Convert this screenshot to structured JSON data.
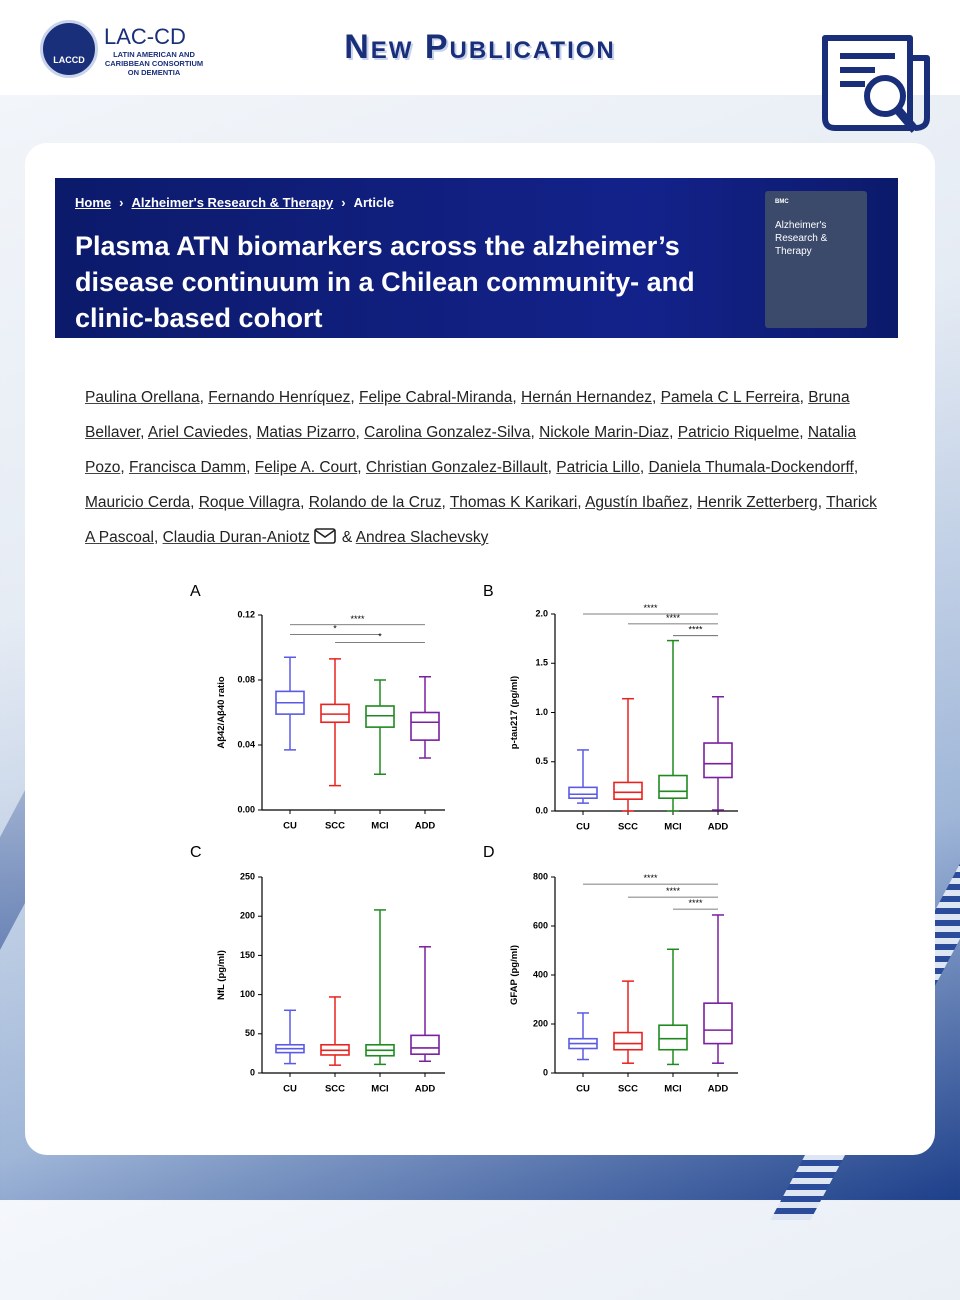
{
  "header": {
    "logo_text": "LACCD",
    "org_name": "LAC-CD",
    "org_full": "LATIN AMERICAN AND CARIBBEAN CONSORTIUM ON DEMENTIA",
    "title": "New Publication"
  },
  "article": {
    "breadcrumb": [
      "Home",
      "Alzheimer's Research & Therapy",
      "Article"
    ],
    "title": "Plasma ATN biomarkers across the alzheimer’s disease continuum in a Chilean community- and clinic-based cohort",
    "cover": {
      "brand": "BMC",
      "journal": "Alzheimer's Research & Therapy"
    }
  },
  "authors": {
    "names": [
      "Paulina Orellana",
      "Fernando Henríquez",
      "Felipe Cabral-Miranda",
      "Hernán Hernandez",
      "Pamela C L Ferreira",
      "Bruna Bellaver",
      "Ariel Caviedes",
      "Matias Pizarro",
      "Carolina Gonzalez-Silva",
      "Nickole Marin-Diaz",
      "Patricio Riquelme",
      "Natalia Pozo",
      "Francisca Damm",
      "Felipe A. Court",
      "Christian Gonzalez-Billault",
      "Patricia Lillo",
      "Daniela Thumala-Dockendorff",
      "Mauricio Cerda",
      "Roque Villagra",
      "Rolando de la Cruz",
      "Thomas K Karikari",
      "Agustín Ibañez",
      "Henrik Zetterberg",
      "Tharick A Pascoal",
      "Claudia Duran-Aniotz",
      "Andrea Slachevsky"
    ],
    "separator": ", ",
    "conjunction": "&"
  },
  "chart_data": [
    {
      "type": "box",
      "panel": "A",
      "y_label": "Aβ42/Aβ40 ratio",
      "categories": [
        "CU",
        "SCC",
        "MCI",
        "ADD"
      ],
      "colors": [
        "#5a5ae6",
        "#e8231f",
        "#1f8a1f",
        "#7a1fa0"
      ],
      "boxes": [
        {
          "min": 0.037,
          "q1": 0.059,
          "median": 0.066,
          "q3": 0.073,
          "max": 0.094
        },
        {
          "min": 0.015,
          "q1": 0.054,
          "median": 0.059,
          "q3": 0.065,
          "max": 0.093
        },
        {
          "min": 0.022,
          "q1": 0.051,
          "median": 0.058,
          "q3": 0.064,
          "max": 0.08
        },
        {
          "min": 0.032,
          "q1": 0.043,
          "median": 0.054,
          "q3": 0.06,
          "max": 0.082
        }
      ],
      "ylim": [
        0,
        0.12
      ],
      "yticks": [
        {
          "value": 0,
          "label": "0.00"
        },
        {
          "value": 0.04,
          "label": "0.04"
        },
        {
          "value": 0.08,
          "label": "0.08"
        },
        {
          "value": 0.12,
          "label": "0.12"
        }
      ],
      "brackets": [
        {
          "from": "CU",
          "to": "ADD",
          "y": 0.114,
          "label": "****"
        },
        {
          "from": "CU",
          "to": "MCI",
          "y": 0.108,
          "label": "*"
        },
        {
          "from": "SCC",
          "to": "ADD",
          "y": 0.103,
          "label": "*"
        }
      ]
    },
    {
      "type": "box",
      "panel": "B",
      "y_label": "p-tau217 (pg/ml)",
      "categories": [
        "CU",
        "SCC",
        "MCI",
        "ADD"
      ],
      "colors": [
        "#5a5ae6",
        "#e8231f",
        "#1f8a1f",
        "#7a1fa0"
      ],
      "boxes": [
        {
          "min": 0.08,
          "q1": 0.13,
          "median": 0.17,
          "q3": 0.24,
          "max": 0.62
        },
        {
          "min": 0.0,
          "q1": 0.12,
          "median": 0.19,
          "q3": 0.29,
          "max": 1.14
        },
        {
          "min": 0.0,
          "q1": 0.13,
          "median": 0.2,
          "q3": 0.36,
          "max": 1.73
        },
        {
          "min": 0.01,
          "q1": 0.34,
          "median": 0.48,
          "q3": 0.69,
          "max": 1.16
        }
      ],
      "ylim": [
        0,
        2
      ],
      "yticks": [
        {
          "value": 0,
          "label": "0.0"
        },
        {
          "value": 0.5,
          "label": "0.5"
        },
        {
          "value": 1,
          "label": "1.0"
        },
        {
          "value": 1.5,
          "label": "1.5"
        },
        {
          "value": 2,
          "label": "2.0"
        }
      ],
      "brackets": [
        {
          "from": "CU",
          "to": "ADD",
          "y": 2.0,
          "label": "****"
        },
        {
          "from": "SCC",
          "to": "ADD",
          "y": 1.9,
          "label": "****"
        },
        {
          "from": "MCI",
          "to": "ADD",
          "y": 1.78,
          "label": "****"
        }
      ]
    },
    {
      "type": "box",
      "panel": "C",
      "y_label": "NfL (pg/ml)",
      "categories": [
        "CU",
        "SCC",
        "MCI",
        "ADD"
      ],
      "colors": [
        "#5a5ae6",
        "#e8231f",
        "#1f8a1f",
        "#7a1fa0"
      ],
      "boxes": [
        {
          "min": 12,
          "q1": 26,
          "median": 31,
          "q3": 36,
          "max": 80
        },
        {
          "min": 10,
          "q1": 23,
          "median": 29,
          "q3": 36,
          "max": 97
        },
        {
          "min": 11,
          "q1": 22,
          "median": 29,
          "q3": 36,
          "max": 208
        },
        {
          "min": 15,
          "q1": 24,
          "median": 32,
          "q3": 48,
          "max": 161
        }
      ],
      "ylim": [
        0,
        250
      ],
      "yticks": [
        0,
        50,
        100,
        150,
        200,
        250
      ],
      "brackets": []
    },
    {
      "type": "box",
      "panel": "D",
      "y_label": "GFAP (pg/ml)",
      "categories": [
        "CU",
        "SCC",
        "MCI",
        "ADD"
      ],
      "colors": [
        "#5a5ae6",
        "#e8231f",
        "#1f8a1f",
        "#7a1fa0"
      ],
      "boxes": [
        {
          "min": 55,
          "q1": 100,
          "median": 120,
          "q3": 140,
          "max": 245
        },
        {
          "min": 40,
          "q1": 95,
          "median": 120,
          "q3": 165,
          "max": 375
        },
        {
          "min": 35,
          "q1": 95,
          "median": 140,
          "q3": 195,
          "max": 505
        },
        {
          "min": 40,
          "q1": 120,
          "median": 175,
          "q3": 285,
          "max": 645
        }
      ],
      "ylim": [
        0,
        800
      ],
      "yticks": [
        0,
        200,
        400,
        600,
        800
      ],
      "brackets": [
        {
          "from": "CU",
          "to": "ADD",
          "y": 771,
          "label": "****"
        },
        {
          "from": "SCC",
          "to": "ADD",
          "y": 718,
          "label": "****"
        },
        {
          "from": "MCI",
          "to": "ADD",
          "y": 669,
          "label": "****"
        }
      ]
    }
  ]
}
